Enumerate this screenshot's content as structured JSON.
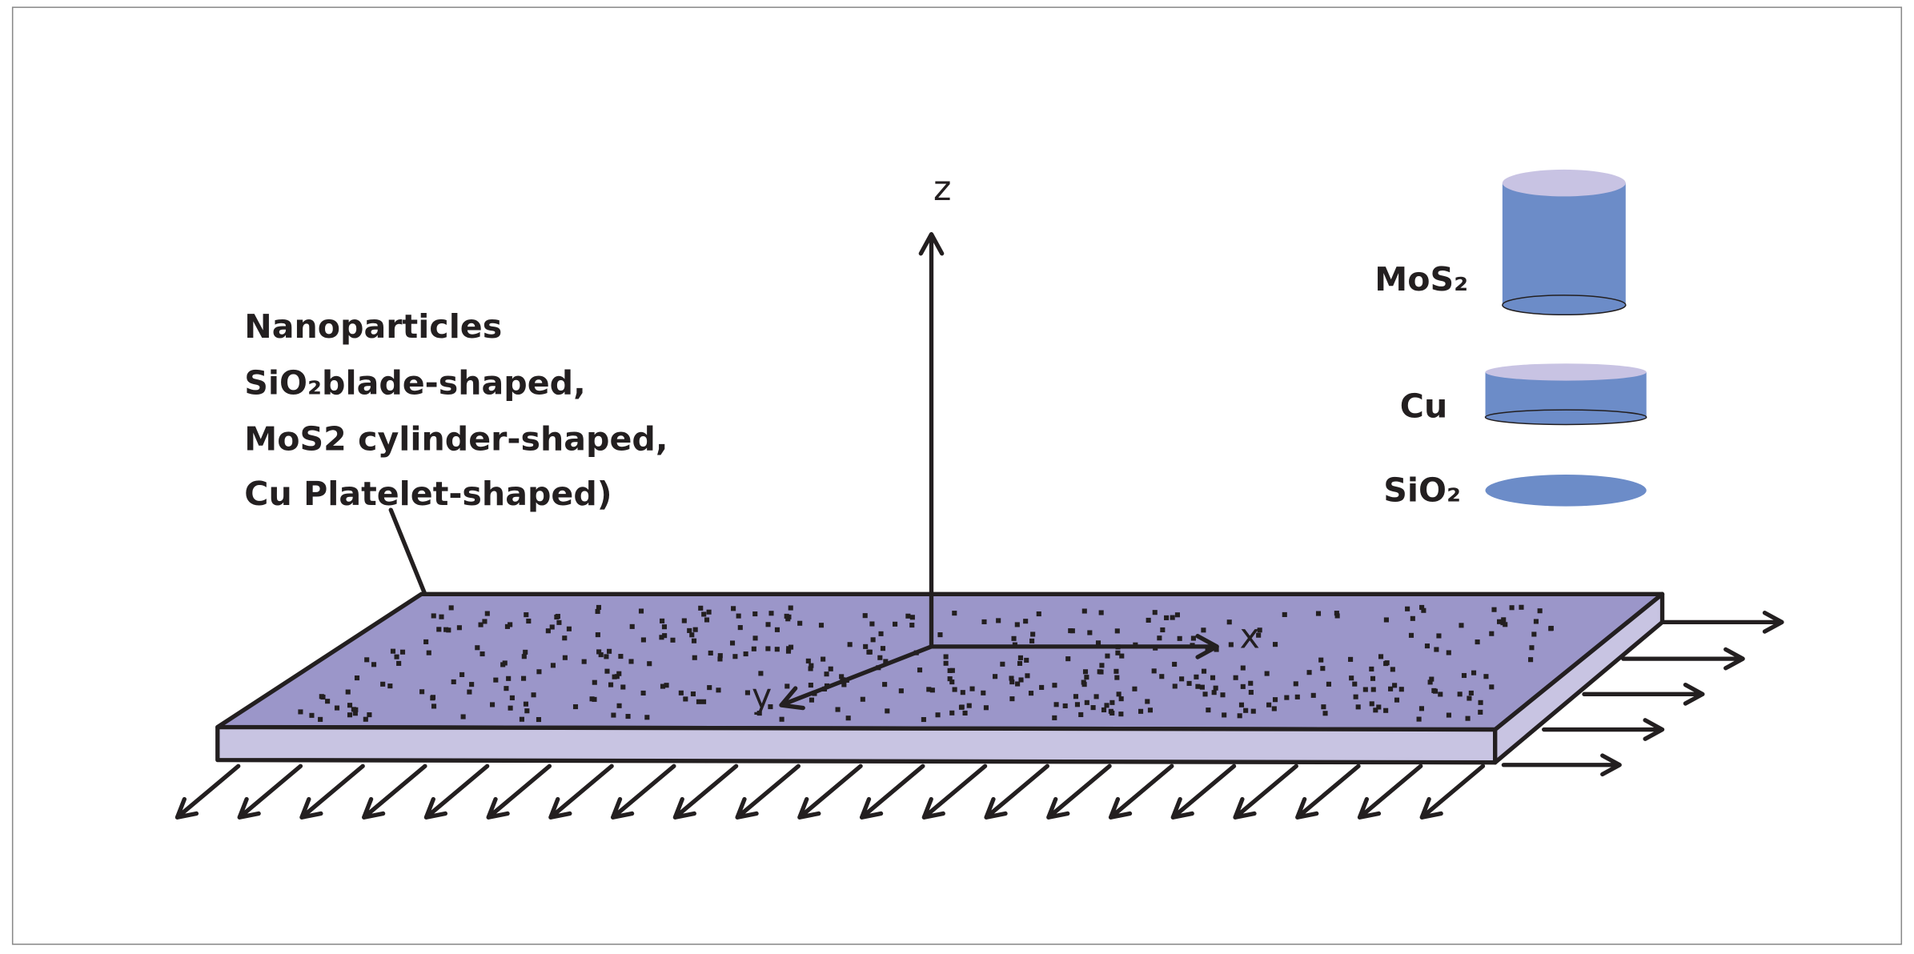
{
  "axes": {
    "z": "z",
    "x": "x",
    "y": "y"
  },
  "annotation": {
    "lines": [
      "Nanoparticles",
      "SiO₂blade-shaped,",
      "MoS2 cylinder-shaped,",
      "Cu Platelet-shaped)"
    ]
  },
  "legend": [
    {
      "label": "MoS₂"
    },
    {
      "label": "Cu"
    },
    {
      "label": "SiO₂"
    }
  ]
}
